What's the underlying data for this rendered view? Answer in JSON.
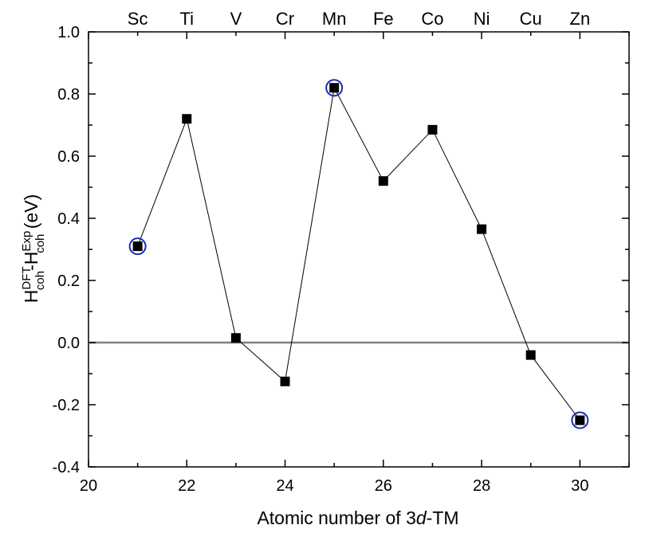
{
  "chart_data": {
    "type": "line",
    "xlabel": {
      "prefix": "Atomic number of 3",
      "italic": "d",
      "suffix": "-TM"
    },
    "ylabel": {
      "h1": "H",
      "sup1": "DFT",
      "sub1": "coh",
      "dash": "-H",
      "sup2": "Exp",
      "sub2": "coh",
      "unit": " (eV)"
    },
    "xlim": [
      20,
      31
    ],
    "ylim": [
      -0.4,
      1.0
    ],
    "x_ticks": [
      20,
      22,
      24,
      26,
      28,
      30
    ],
    "x_tick_labels": [
      "20",
      "22",
      "24",
      "26",
      "28",
      "30"
    ],
    "y_ticks": [
      -0.4,
      -0.2,
      0.0,
      0.2,
      0.4,
      0.6,
      0.8,
      1.0
    ],
    "y_tick_labels": [
      "-0.4",
      "-0.2",
      "0.0",
      "0.2",
      "0.4",
      "0.6",
      "0.8",
      "1.0"
    ],
    "top_axis": {
      "positions": [
        21,
        22,
        23,
        24,
        25,
        26,
        27,
        28,
        29,
        30
      ],
      "labels": [
        "Sc",
        "Ti",
        "V",
        "Cr",
        "Mn",
        "Fe",
        "Co",
        "Ni",
        "Cu",
        "Zn"
      ]
    },
    "reference_line": {
      "y": 0.0,
      "color": "#808080"
    },
    "series": [
      {
        "x": [
          21,
          22,
          23,
          24,
          25,
          26,
          27,
          28,
          29,
          30
        ],
        "y": [
          0.31,
          0.72,
          0.015,
          -0.125,
          0.82,
          0.52,
          0.685,
          0.365,
          -0.04,
          -0.25
        ],
        "marker": "square",
        "color": "#000000"
      }
    ],
    "highlighted_x": [
      21,
      25,
      30
    ],
    "highlight_color": "#1c2bb0",
    "grid": false
  }
}
